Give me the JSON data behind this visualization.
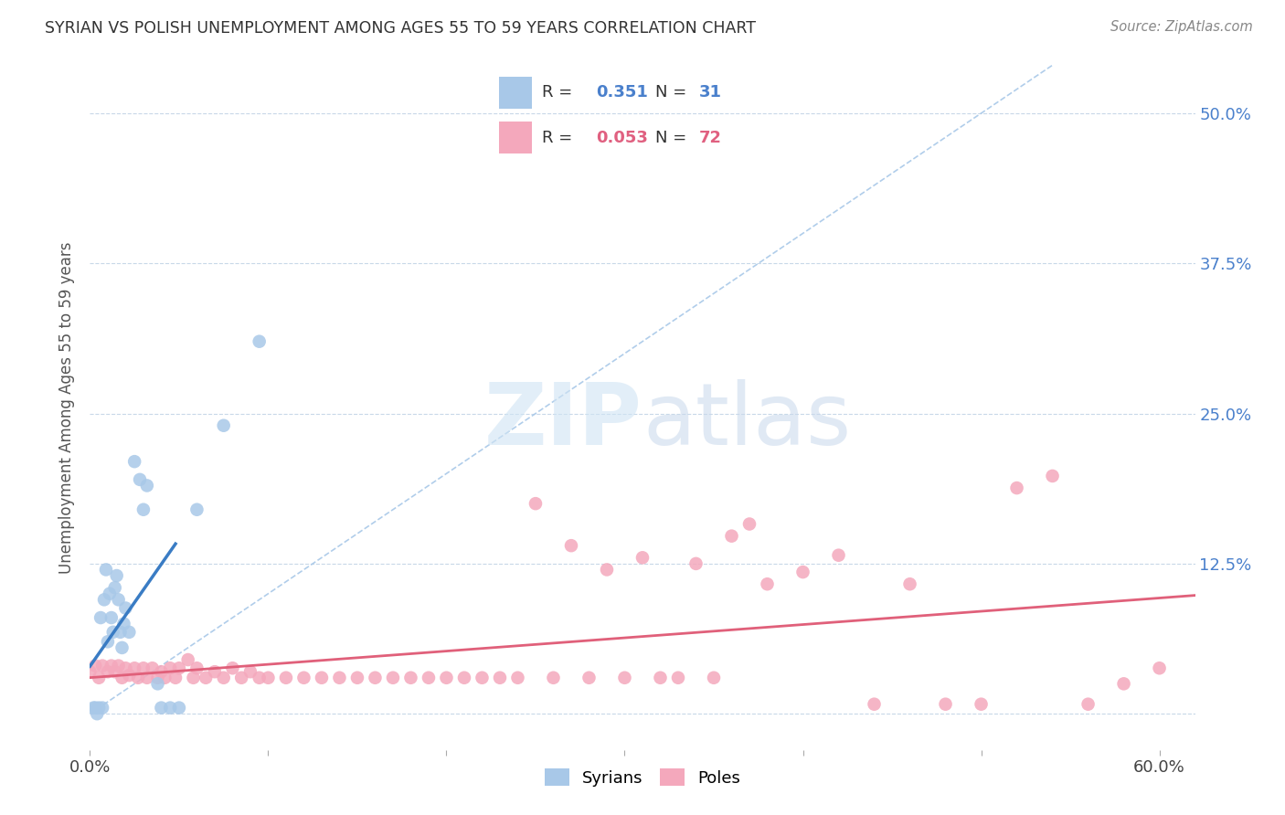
{
  "title": "SYRIAN VS POLISH UNEMPLOYMENT AMONG AGES 55 TO 59 YEARS CORRELATION CHART",
  "source": "Source: ZipAtlas.com",
  "ylabel": "Unemployment Among Ages 55 to 59 years",
  "xlim": [
    0.0,
    0.62
  ],
  "ylim": [
    -0.03,
    0.54
  ],
  "xticks": [
    0.0,
    0.1,
    0.2,
    0.3,
    0.4,
    0.5,
    0.6
  ],
  "xticklabels": [
    "0.0%",
    "",
    "",
    "",
    "",
    "",
    "60.0%"
  ],
  "yticks": [
    0.0,
    0.125,
    0.25,
    0.375,
    0.5
  ],
  "yticklabels_right": [
    "",
    "12.5%",
    "25.0%",
    "37.5%",
    "50.0%"
  ],
  "syrian_R": 0.351,
  "syrian_N": 31,
  "polish_R": 0.053,
  "polish_N": 72,
  "syrian_color": "#a8c8e8",
  "polish_color": "#f4a8bc",
  "syrian_line_color": "#3a7cc4",
  "polish_line_color": "#e0607a",
  "diagonal_color": "#a8c8e8",
  "background_color": "#ffffff",
  "grid_color": "#c8d8e8",
  "syrian_x": [
    0.002,
    0.003,
    0.004,
    0.005,
    0.006,
    0.007,
    0.008,
    0.009,
    0.01,
    0.011,
    0.012,
    0.013,
    0.014,
    0.015,
    0.016,
    0.017,
    0.018,
    0.019,
    0.02,
    0.022,
    0.025,
    0.028,
    0.03,
    0.032,
    0.038,
    0.04,
    0.045,
    0.05,
    0.06,
    0.075,
    0.095
  ],
  "syrian_y": [
    0.005,
    0.005,
    0.0,
    0.005,
    0.08,
    0.005,
    0.095,
    0.12,
    0.06,
    0.1,
    0.08,
    0.068,
    0.105,
    0.115,
    0.095,
    0.068,
    0.055,
    0.075,
    0.088,
    0.068,
    0.21,
    0.195,
    0.17,
    0.19,
    0.025,
    0.005,
    0.005,
    0.005,
    0.17,
    0.24,
    0.31
  ],
  "polish_x": [
    0.0,
    0.003,
    0.005,
    0.007,
    0.01,
    0.012,
    0.014,
    0.016,
    0.018,
    0.02,
    0.022,
    0.025,
    0.027,
    0.03,
    0.032,
    0.035,
    0.038,
    0.04,
    0.042,
    0.045,
    0.048,
    0.05,
    0.055,
    0.058,
    0.06,
    0.065,
    0.07,
    0.075,
    0.08,
    0.085,
    0.09,
    0.095,
    0.1,
    0.11,
    0.12,
    0.13,
    0.14,
    0.15,
    0.16,
    0.17,
    0.18,
    0.19,
    0.2,
    0.21,
    0.22,
    0.23,
    0.24,
    0.25,
    0.26,
    0.27,
    0.28,
    0.29,
    0.3,
    0.31,
    0.32,
    0.33,
    0.34,
    0.35,
    0.36,
    0.37,
    0.38,
    0.4,
    0.42,
    0.44,
    0.46,
    0.48,
    0.5,
    0.52,
    0.54,
    0.56,
    0.58,
    0.6
  ],
  "polish_y": [
    0.035,
    0.04,
    0.03,
    0.04,
    0.035,
    0.04,
    0.035,
    0.04,
    0.03,
    0.038,
    0.032,
    0.038,
    0.03,
    0.038,
    0.03,
    0.038,
    0.03,
    0.035,
    0.03,
    0.038,
    0.03,
    0.038,
    0.045,
    0.03,
    0.038,
    0.03,
    0.035,
    0.03,
    0.038,
    0.03,
    0.035,
    0.03,
    0.03,
    0.03,
    0.03,
    0.03,
    0.03,
    0.03,
    0.03,
    0.03,
    0.03,
    0.03,
    0.03,
    0.03,
    0.03,
    0.03,
    0.03,
    0.175,
    0.03,
    0.14,
    0.03,
    0.12,
    0.03,
    0.13,
    0.03,
    0.03,
    0.125,
    0.03,
    0.148,
    0.158,
    0.108,
    0.118,
    0.132,
    0.008,
    0.108,
    0.008,
    0.008,
    0.188,
    0.198,
    0.008,
    0.025,
    0.038
  ]
}
